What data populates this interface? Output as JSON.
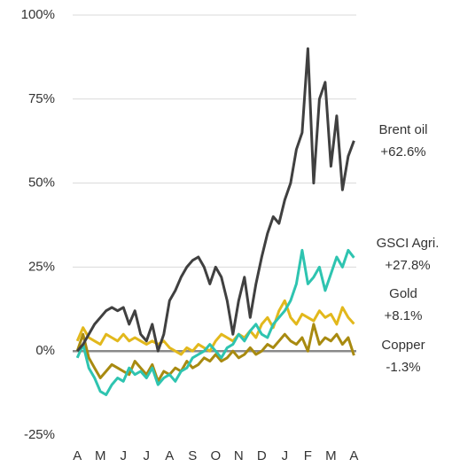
{
  "chart_data": {
    "type": "line",
    "x": [
      0,
      0.25,
      0.5,
      0.75,
      1,
      1.25,
      1.5,
      1.75,
      2,
      2.25,
      2.5,
      2.75,
      3,
      3.25,
      3.5,
      3.75,
      4,
      4.25,
      4.5,
      4.75,
      5,
      5.25,
      5.5,
      5.75,
      6,
      6.25,
      6.5,
      6.75,
      7,
      7.25,
      7.5,
      7.75,
      8,
      8.25,
      8.5,
      8.75,
      9,
      9.25,
      9.5,
      9.75,
      10,
      10.25,
      10.5,
      10.75,
      11,
      11.25,
      11.5,
      11.75,
      12
    ],
    "xlim": [
      -0.2,
      12.1
    ],
    "xticks": [
      {
        "value": 0,
        "label": "A"
      },
      {
        "value": 1,
        "label": "M"
      },
      {
        "value": 2,
        "label": "J"
      },
      {
        "value": 3,
        "label": "J"
      },
      {
        "value": 4,
        "label": "A"
      },
      {
        "value": 5,
        "label": "S"
      },
      {
        "value": 6,
        "label": "O"
      },
      {
        "value": 7,
        "label": "N"
      },
      {
        "value": 8,
        "label": "D"
      },
      {
        "value": 9,
        "label": "J"
      },
      {
        "value": 10,
        "label": "F"
      },
      {
        "value": 11,
        "label": "M"
      },
      {
        "value": 12,
        "label": "A"
      }
    ],
    "ylim": [
      -25,
      100
    ],
    "yticks": [
      {
        "value": -25,
        "label": "-25%"
      },
      {
        "value": 0,
        "label": "0%"
      },
      {
        "value": 25,
        "label": "25%"
      },
      {
        "value": 50,
        "label": "50%"
      },
      {
        "value": 75,
        "label": "75%"
      },
      {
        "value": 100,
        "label": "100%"
      }
    ],
    "negative_tick_color": "#e00000",
    "grid": true,
    "series": [
      {
        "name": "Brent oil",
        "change_label": "+62.6%",
        "color": "#404040",
        "label_color": "#333333",
        "values": [
          0,
          2,
          5,
          8,
          10,
          12,
          13,
          12,
          13,
          8,
          12,
          5,
          3,
          8,
          0,
          5,
          15,
          18,
          22,
          25,
          27,
          28,
          25,
          20,
          25,
          22,
          15,
          5,
          15,
          22,
          10,
          20,
          28,
          35,
          40,
          38,
          45,
          50,
          60,
          65,
          90,
          50,
          75,
          80,
          55,
          70,
          48,
          58,
          62.6
        ]
      },
      {
        "name": "GSCI Agri.",
        "change_label": "+27.8%",
        "color": "#2ec4b0",
        "label_color": "#2ec4b0",
        "values": [
          -2,
          2,
          -5,
          -8,
          -12,
          -13,
          -10,
          -8,
          -9,
          -5,
          -7,
          -6,
          -8,
          -5,
          -10,
          -8,
          -7,
          -9,
          -6,
          -5,
          -2,
          -1,
          0,
          2,
          0,
          -2,
          1,
          2,
          5,
          3,
          6,
          8,
          5,
          4,
          8,
          10,
          12,
          15,
          20,
          30,
          20,
          22,
          25,
          18,
          23,
          28,
          25,
          30,
          27.8
        ]
      },
      {
        "name": "Gold",
        "change_label": "+8.1%",
        "color": "#e2b81c",
        "label_color": "#e2b81c",
        "values": [
          3,
          7,
          4,
          3,
          2,
          5,
          4,
          3,
          5,
          3,
          4,
          3,
          2,
          3,
          2,
          3,
          1,
          0,
          -1,
          1,
          0,
          2,
          1,
          0,
          3,
          5,
          4,
          3,
          5,
          4,
          6,
          4,
          8,
          10,
          7,
          12,
          15,
          10,
          8,
          11,
          10,
          9,
          12,
          10,
          11,
          8,
          13,
          10,
          8.1
        ]
      },
      {
        "name": "Copper",
        "change_label": "-1.3%",
        "color": "#a88a10",
        "label_color": "#a88a10",
        "values": [
          0,
          5,
          -2,
          -5,
          -8,
          -6,
          -4,
          -5,
          -6,
          -7,
          -3,
          -5,
          -7,
          -4,
          -9,
          -6,
          -7,
          -5,
          -6,
          -3,
          -5,
          -4,
          -2,
          -3,
          -1,
          -3,
          -2,
          0,
          -2,
          -1,
          1,
          -1,
          0,
          2,
          1,
          3,
          5,
          3,
          2,
          4,
          0,
          8,
          2,
          4,
          3,
          5,
          2,
          4,
          -1.3
        ]
      }
    ]
  }
}
